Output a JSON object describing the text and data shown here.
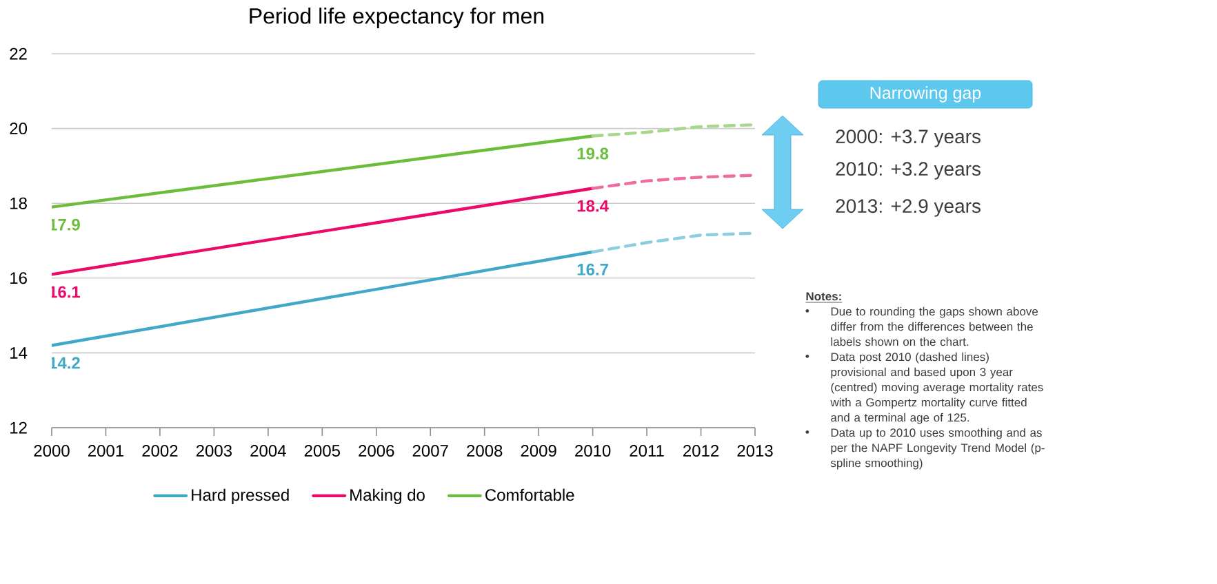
{
  "chart_data": {
    "type": "line",
    "title": "Period life expectancy for men",
    "xlim": [
      2000,
      2013
    ],
    "ylim": [
      12,
      22
    ],
    "xticks": [
      2000,
      2001,
      2002,
      2003,
      2004,
      2005,
      2006,
      2007,
      2008,
      2009,
      2010,
      2011,
      2012,
      2013
    ],
    "yticks": [
      12,
      14,
      16,
      18,
      20,
      22
    ],
    "grid": "y",
    "legend": "bottom",
    "marker": "none",
    "series": [
      {
        "name": "Hard pressed",
        "color": "#41a8c8",
        "x": [
          2000,
          2010
        ],
        "values": [
          14.2,
          16.7
        ],
        "value_labels": [
          "14.2",
          "16.7"
        ],
        "line_style": "solid"
      },
      {
        "name": "Making do",
        "color": "#ea0a6a",
        "x": [
          2000,
          2010
        ],
        "values": [
          16.1,
          18.4
        ],
        "value_labels": [
          "16.1",
          "18.4"
        ],
        "line_style": "solid"
      },
      {
        "name": "Comfortable",
        "color": "#6cbd3c",
        "x": [
          2000,
          2010
        ],
        "values": [
          17.9,
          19.8
        ],
        "value_labels": [
          "17.9",
          "19.8"
        ],
        "line_style": "solid"
      },
      {
        "color": "#8ccde0",
        "x": [
          2010,
          2011,
          2012,
          2013
        ],
        "values": [
          16.7,
          16.95,
          17.15,
          17.2
        ],
        "line_style": "dashed"
      },
      {
        "color": "#f06ba0",
        "x": [
          2010,
          2011,
          2012,
          2013
        ],
        "values": [
          18.4,
          18.6,
          18.7,
          18.75
        ],
        "line_style": "dashed"
      },
      {
        "color": "#a6d78a",
        "x": [
          2010,
          2011,
          2012,
          2013
        ],
        "values": [
          19.8,
          19.9,
          20.05,
          20.1
        ],
        "line_style": "dashed"
      }
    ],
    "annotations": [
      "Narrowing gap",
      "2000: +3.7 years",
      "2010: +3.2 years",
      "2013: +2.9 years",
      "Notes:",
      "Due to rounding the gaps shown above differ from the differences between the labels shown on the chart.",
      "Data post 2010 (dashed lines) provisional and based upon 3 year (centred) moving average mortality rates with a Gompertz mortality curve fitted and a terminal age of 125.",
      "Data up to 2010 uses smoothing and as per the NAPF Longevity Trend Model (p-spline smoothing)"
    ]
  }
}
